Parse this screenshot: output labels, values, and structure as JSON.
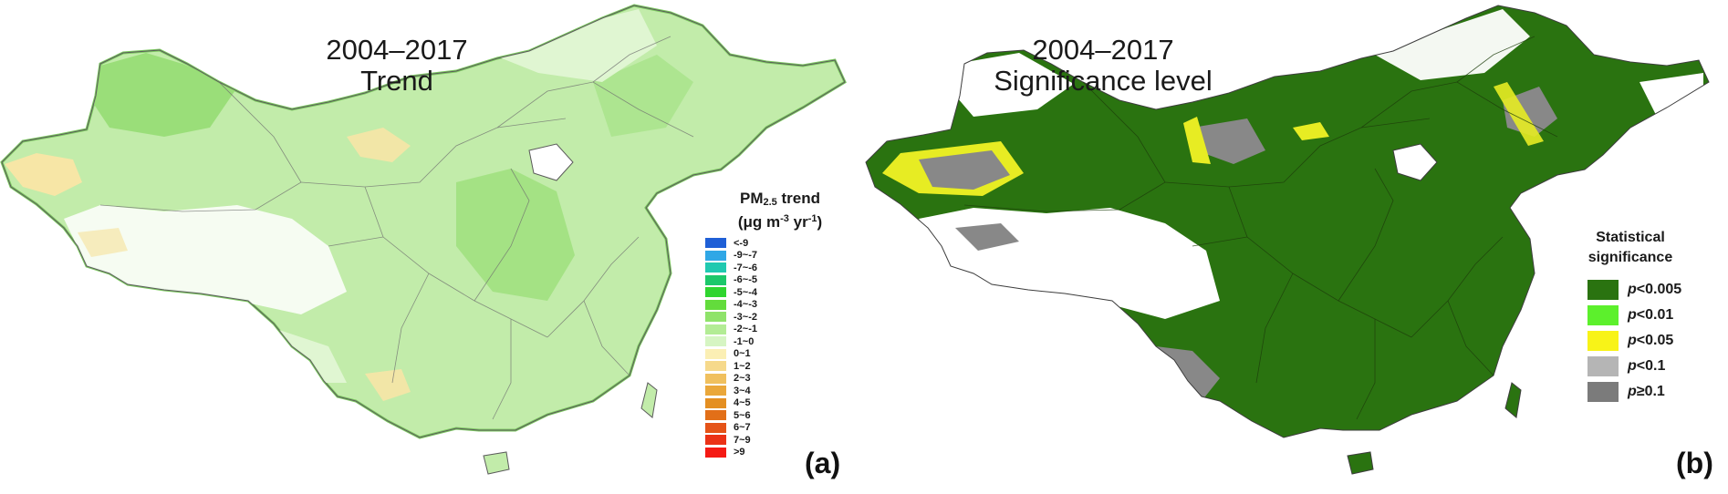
{
  "panels": [
    {
      "id": "a",
      "title_line1": "2004–2017",
      "title_line2": "Trend",
      "legend_title": {
        "pm": "PM",
        "sub": "2.5",
        "word": " trend",
        "unit_open": "(μg m",
        "sup1": "-3",
        "unit_mid": " yr",
        "sup2": "-1",
        "unit_close": ")"
      },
      "legend": [
        {
          "label": "<-9",
          "color": "#1f5fd6"
        },
        {
          "label": "-9~-7",
          "color": "#2fa7e6"
        },
        {
          "label": "-7~-6",
          "color": "#20c9b0"
        },
        {
          "label": "-6~-5",
          "color": "#1cc86a"
        },
        {
          "label": "-5~-4",
          "color": "#2fd52f"
        },
        {
          "label": "-4~-3",
          "color": "#63dc3c"
        },
        {
          "label": "-3~-2",
          "color": "#8fe36a"
        },
        {
          "label": "-2~-1",
          "color": "#b3ec95"
        },
        {
          "label": "-1~0",
          "color": "#d6f5c3"
        },
        {
          "label": "0~1",
          "color": "#fbefb4"
        },
        {
          "label": "1~2",
          "color": "#f6d98b"
        },
        {
          "label": "2~3",
          "color": "#f0c05e"
        },
        {
          "label": "3~4",
          "color": "#eaa73a"
        },
        {
          "label": "4~5",
          "color": "#e48f22"
        },
        {
          "label": "5~6",
          "color": "#e26f18"
        },
        {
          "label": "6~7",
          "color": "#e55317"
        },
        {
          "label": "7~9",
          "color": "#eb3216"
        },
        {
          "label": ">9",
          "color": "#f51a14"
        }
      ],
      "panel_label": "(a)"
    },
    {
      "id": "b",
      "title_line1": "2004–2017",
      "title_line2": "Significance level",
      "legend_title_line1": "Statistical",
      "legend_title_line2": "significance",
      "legend": [
        {
          "p": "p",
          "rest": "<0.005",
          "color": "#2a7310"
        },
        {
          "p": "p",
          "rest": "<0.01",
          "color": "#5cf02c"
        },
        {
          "p": "p",
          "rest": "<0.05",
          "color": "#f8f318"
        },
        {
          "p": "p",
          "rest": "<0.1",
          "color": "#b5b5b5"
        },
        {
          "p": "p",
          "rest": "≥0.1",
          "color": "#7b7b7b"
        }
      ],
      "panel_label": "(b)"
    }
  ],
  "colors": {
    "trend_base": "#c2ecaa",
    "trend_dark": "#96dd73",
    "trend_light": "#e3f7d6",
    "trend_positive": "#f7e6a6",
    "sig_base": "#2a7310",
    "sig_grey": "#888888",
    "sig_yellow": "#e7ec23",
    "border": "#5b5b5b"
  }
}
